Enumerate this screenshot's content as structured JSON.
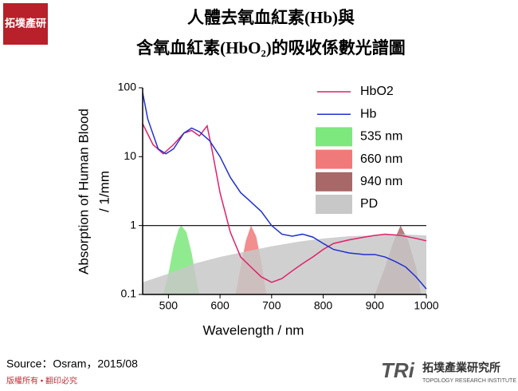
{
  "page": {
    "logo": "拓墣產研",
    "source": "Source：Osram，2015/08",
    "copyright": "版權所有 • 翻印必究",
    "brand_mark": "TRi",
    "brand_name": "拓墣產業研究所",
    "brand_sub": "TOPOLOGY RESEARCH INSTITUTE"
  },
  "chart_data": {
    "type": "line",
    "title": [
      "人體去氧血紅素(Hb)與",
      "含氧血紅素(HbO₂)的吸收係數光譜圖"
    ],
    "xlabel": "Wavelength / nm",
    "ylabel": [
      "Absorption of Human Blood",
      "/ 1/mm"
    ],
    "xlim": [
      450,
      1000
    ],
    "xticks": [
      500,
      600,
      700,
      800,
      900,
      1000
    ],
    "ylim": [
      0.1,
      100
    ],
    "yticks": [
      0.1,
      1,
      10,
      100
    ],
    "log_y": true,
    "reference_line": 1,
    "legend": "upper right",
    "series": [
      {
        "name": "HbO2",
        "type": "line",
        "color": "#e0206a",
        "x": [
          450,
          470,
          490,
          510,
          530,
          545,
          560,
          575,
          585,
          600,
          620,
          640,
          660,
          680,
          700,
          720,
          740,
          760,
          780,
          800,
          820,
          850,
          880,
          900,
          920,
          950,
          980,
          1000
        ],
        "values": [
          30,
          15,
          11,
          15,
          22,
          24,
          20,
          28,
          12,
          3,
          0.8,
          0.35,
          0.25,
          0.18,
          0.15,
          0.17,
          0.22,
          0.28,
          0.35,
          0.45,
          0.55,
          0.62,
          0.68,
          0.72,
          0.75,
          0.72,
          0.65,
          0.6
        ]
      },
      {
        "name": "Hb",
        "type": "line",
        "color": "#2030d0",
        "x": [
          450,
          460,
          480,
          495,
          510,
          530,
          545,
          560,
          580,
          600,
          620,
          640,
          660,
          680,
          700,
          720,
          740,
          760,
          780,
          800,
          820,
          850,
          880,
          900,
          920,
          940,
          960,
          980,
          1000
        ],
        "values": [
          85,
          35,
          13,
          11,
          13,
          22,
          26,
          23,
          17,
          10,
          5,
          3,
          2.2,
          1.6,
          1.0,
          0.75,
          0.7,
          0.75,
          0.68,
          0.55,
          0.45,
          0.4,
          0.38,
          0.38,
          0.35,
          0.3,
          0.25,
          0.18,
          0.12
        ]
      },
      {
        "name": "535 nm",
        "type": "area",
        "color": "#7de87d",
        "x": [
          490,
          500,
          510,
          520,
          525,
          535,
          545,
          555,
          560
        ],
        "values": [
          0.1,
          0.2,
          0.5,
          0.9,
          1.0,
          0.8,
          0.4,
          0.15,
          0.1
        ]
      },
      {
        "name": "660 nm",
        "type": "area",
        "color": "#f07a7a",
        "x": [
          630,
          640,
          650,
          660,
          670,
          680,
          690
        ],
        "values": [
          0.1,
          0.25,
          0.6,
          1.0,
          0.7,
          0.3,
          0.1
        ]
      },
      {
        "name": "940 nm",
        "type": "area",
        "color": "#a86868",
        "x": [
          900,
          920,
          935,
          950,
          965,
          980,
          990
        ],
        "values": [
          0.1,
          0.25,
          0.55,
          1.0,
          0.6,
          0.25,
          0.1
        ]
      },
      {
        "name": "PD",
        "type": "area",
        "color": "#c8c8c8",
        "x": [
          450,
          500,
          550,
          600,
          650,
          700,
          750,
          800,
          850,
          900,
          950,
          1000
        ],
        "values": [
          0.15,
          0.2,
          0.28,
          0.35,
          0.42,
          0.5,
          0.58,
          0.65,
          0.7,
          0.72,
          0.75,
          0.72
        ]
      }
    ]
  }
}
